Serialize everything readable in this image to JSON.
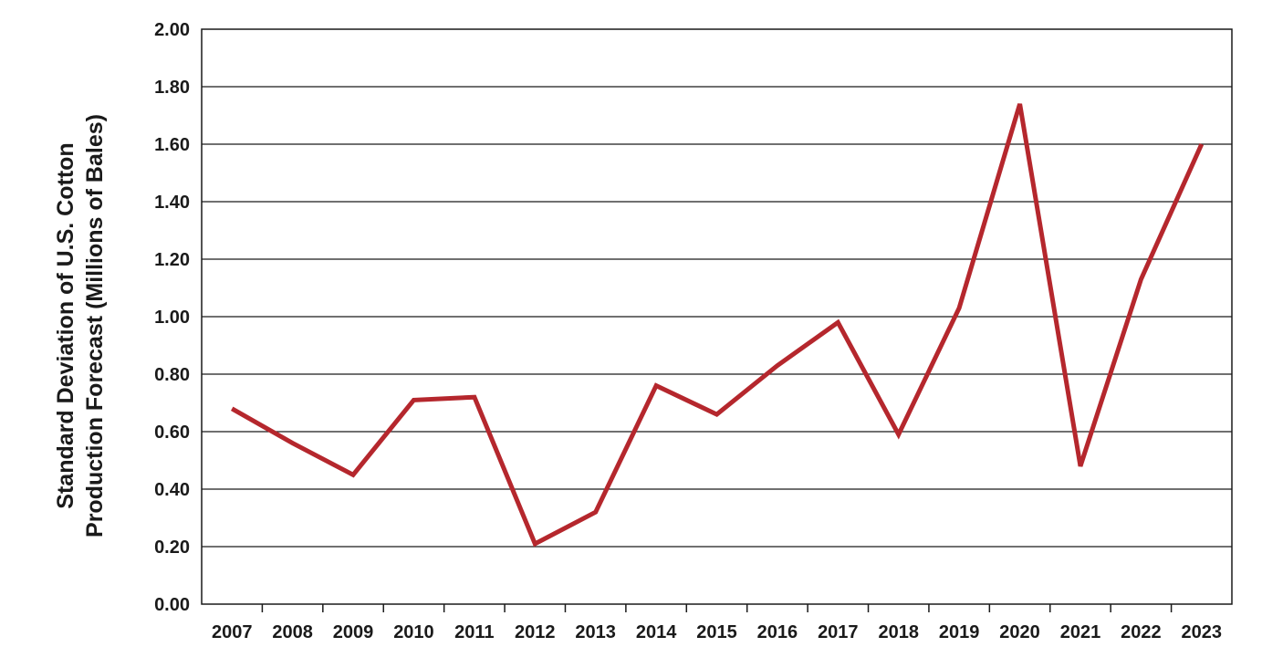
{
  "chart_data": {
    "type": "line",
    "title": "",
    "xlabel": "",
    "ylabel_lines": [
      "Standard Deviation of U.S. Cotton",
      "Production Forecast (Millions of Bales)"
    ],
    "categories": [
      "2007",
      "2008",
      "2009",
      "2010",
      "2011",
      "2012",
      "2013",
      "2014",
      "2015",
      "2016",
      "2017",
      "2018",
      "2019",
      "2020",
      "2021",
      "2022",
      "2023"
    ],
    "series": [
      {
        "values": [
          0.68,
          0.56,
          0.45,
          0.71,
          0.72,
          0.21,
          0.32,
          0.76,
          0.66,
          0.83,
          0.98,
          0.59,
          1.03,
          1.74,
          0.48,
          1.13,
          1.6
        ]
      }
    ],
    "ylim": [
      0,
      2.0
    ],
    "yticks": [
      "0.00",
      "0.20",
      "0.40",
      "0.60",
      "0.80",
      "1.00",
      "1.20",
      "1.40",
      "1.60",
      "1.80",
      "2.00"
    ],
    "grid": true,
    "legend": "none",
    "line_color": "#b5272d"
  }
}
